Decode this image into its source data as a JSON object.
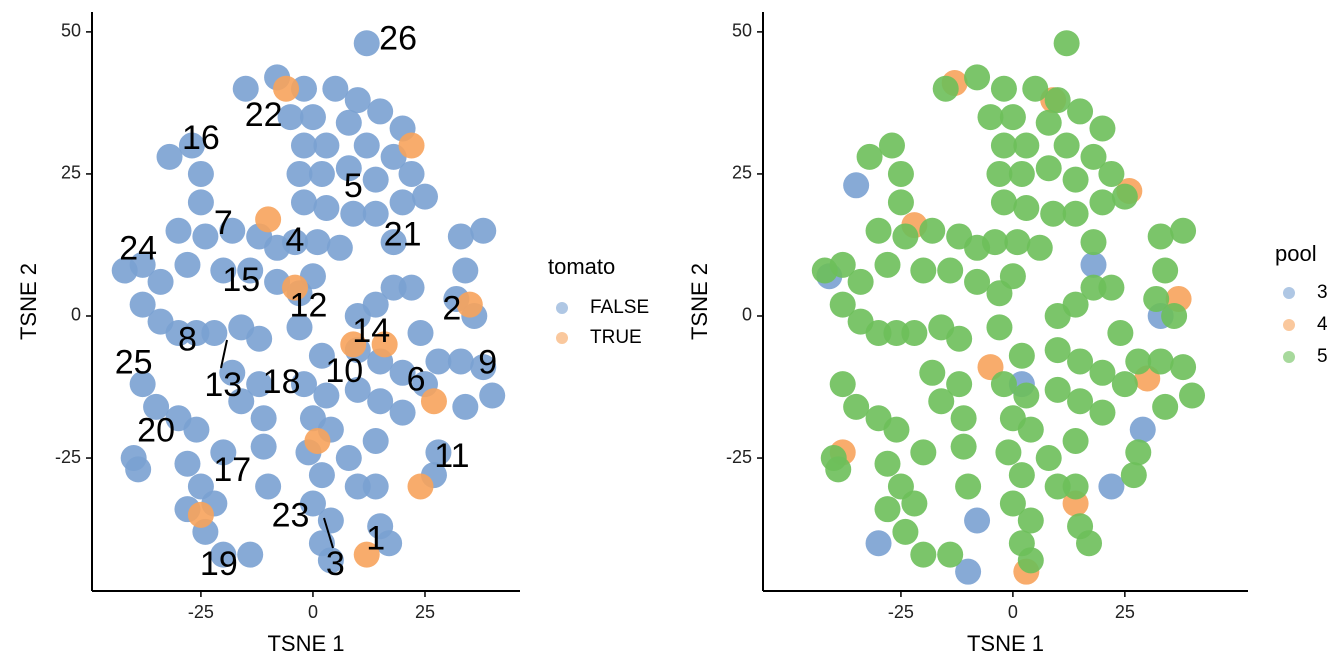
{
  "chart_data": [
    {
      "type": "scatter",
      "xlabel": "TSNE 1",
      "ylabel": "TSNE 2",
      "xlim": [
        -49.3,
        46.2
      ],
      "ylim": [
        -48.4,
        53.5
      ],
      "xticks": [
        -25,
        0,
        25
      ],
      "yticks": [
        -25,
        0,
        25,
        50
      ],
      "legend_title": "tomato",
      "series": [
        {
          "name": "FALSE",
          "color": "#7aa1d2",
          "x": [
            12,
            -15,
            -8,
            -2,
            5,
            10,
            15,
            20,
            -5,
            0,
            8,
            3,
            -2,
            12,
            18,
            22,
            25,
            -3,
            2,
            8,
            14,
            20,
            -2,
            3,
            9,
            14,
            -4,
            1,
            6,
            0,
            18,
            -32,
            -27,
            -25,
            -25,
            -30,
            -24,
            -18,
            -12,
            -8,
            -28,
            -20,
            -14,
            -8,
            -34,
            -42,
            -38,
            -38,
            -34,
            -30,
            -26,
            -22,
            -16,
            -12,
            -38,
            -35,
            -18,
            -16,
            -11,
            -11,
            -12,
            -30,
            -26,
            -28,
            -25,
            -22,
            -28,
            -24,
            -20,
            -14,
            -20,
            -40,
            -39,
            -10,
            -3,
            -3,
            2,
            -2,
            3,
            0,
            4,
            -1,
            2,
            0,
            4,
            2,
            4,
            10,
            14,
            18,
            22,
            10,
            15,
            20,
            25,
            10,
            15,
            20,
            28,
            24,
            33,
            38,
            40,
            34,
            33,
            34,
            32,
            36,
            38,
            27,
            28,
            14,
            14,
            15,
            17,
            8,
            10
          ],
          "y": [
            48,
            40,
            42,
            40,
            40,
            38,
            36,
            33,
            35,
            35,
            34,
            30,
            30,
            30,
            28,
            25,
            21,
            25,
            25,
            26,
            24,
            20,
            20,
            19,
            18,
            18,
            13,
            13,
            12,
            7,
            13,
            28,
            30,
            25,
            20,
            15,
            14,
            15,
            14,
            12,
            9,
            8,
            8,
            6,
            6,
            8,
            9,
            2,
            -1,
            -3,
            -3,
            -3,
            -2,
            -4,
            -12,
            -16,
            -10,
            -15,
            -18,
            -23,
            -12,
            -18,
            -20,
            -26,
            -30,
            -33,
            -34,
            -38,
            -42,
            -42,
            -24,
            -25,
            -27,
            -30,
            -2,
            4,
            -7,
            -12,
            -14,
            -18,
            -20,
            -24,
            -28,
            -33,
            -36,
            -40,
            -43,
            0,
            2,
            5,
            5,
            -6,
            -8,
            -10,
            -12,
            -13,
            -15,
            -17,
            -8,
            -3,
            -8,
            -9,
            -14,
            -16,
            14,
            8,
            3,
            0,
            15,
            -28,
            -24,
            -22,
            -30,
            -37,
            -40,
            -25,
            -30
          ]
        },
        {
          "name": "TRUE",
          "color": "#f7a35c",
          "x": [
            -6,
            22,
            -4,
            9,
            27,
            12,
            -25,
            35,
            -10,
            24,
            1,
            16
          ],
          "y": [
            40,
            30,
            5,
            -5,
            -15,
            -42,
            -35,
            2,
            17,
            -30,
            -22,
            -5
          ]
        }
      ],
      "annotations": [
        {
          "text": "26",
          "x": 19,
          "y": 48.5
        },
        {
          "text": "22",
          "x": -11,
          "y": 35
        },
        {
          "text": "16",
          "x": -25,
          "y": 31
        },
        {
          "text": "5",
          "x": 9,
          "y": 22.5
        },
        {
          "text": "7",
          "x": -20,
          "y": 16
        },
        {
          "text": "4",
          "x": -4,
          "y": 13
        },
        {
          "text": "21",
          "x": 20,
          "y": 14
        },
        {
          "text": "24",
          "x": -39,
          "y": 11.5
        },
        {
          "text": "15",
          "x": -16,
          "y": 6
        },
        {
          "text": "12",
          "x": -1,
          "y": 1.5
        },
        {
          "text": "2",
          "x": 31,
          "y": 1
        },
        {
          "text": "14",
          "x": 13,
          "y": -3
        },
        {
          "text": "8",
          "x": -28,
          "y": -4.5
        },
        {
          "text": "25",
          "x": -40,
          "y": -8.5
        },
        {
          "text": "9",
          "x": 39,
          "y": -8.5
        },
        {
          "text": "10",
          "x": 7,
          "y": -10
        },
        {
          "text": "6",
          "x": 23,
          "y": -11.5
        },
        {
          "text": "13",
          "x": -20,
          "y": -12.5
        },
        {
          "text": "18",
          "x": -7,
          "y": -12
        },
        {
          "text": "20",
          "x": -35,
          "y": -20.5
        },
        {
          "text": "11",
          "x": 31,
          "y": -25
        },
        {
          "text": "17",
          "x": -18,
          "y": -27.5
        },
        {
          "text": "23",
          "x": -5,
          "y": -35.5
        },
        {
          "text": "1",
          "x": 14,
          "y": -39.5
        },
        {
          "text": "19",
          "x": -21,
          "y": -44
        },
        {
          "text": "3",
          "x": 5,
          "y": -44
        }
      ]
    },
    {
      "type": "scatter",
      "xlabel": "TSNE 1",
      "ylabel": "TSNE 2",
      "xlim": [
        -55.8,
        52.5
      ],
      "ylim": [
        -48.4,
        53.5
      ],
      "xticks": [
        -25,
        0,
        25
      ],
      "yticks": [
        -25,
        0,
        25,
        50
      ],
      "legend_title": "pool",
      "series": [
        {
          "name": "3",
          "color": "#7aa1d2",
          "x": [
            -41,
            -10,
            33,
            -35,
            -8,
            22,
            2,
            -30,
            29,
            18
          ],
          "y": [
            7,
            -45,
            0,
            23,
            -36,
            -30,
            -12,
            -40,
            -20,
            9
          ]
        },
        {
          "name": "4",
          "color": "#f7a35c",
          "x": [
            -13,
            26,
            -5,
            3,
            14,
            -38,
            30,
            -22,
            9,
            37
          ],
          "y": [
            41,
            22,
            -9,
            -45,
            -33,
            -24,
            -11,
            16,
            38,
            3
          ]
        },
        {
          "name": "5",
          "color": "#6dbf5a",
          "x": [
            12,
            -15,
            -8,
            -2,
            5,
            10,
            15,
            20,
            -5,
            0,
            8,
            3,
            -2,
            12,
            18,
            22,
            25,
            -3,
            2,
            8,
            14,
            20,
            -2,
            3,
            9,
            14,
            -4,
            1,
            6,
            0,
            18,
            -32,
            -27,
            -25,
            -25,
            -30,
            -24,
            -18,
            -12,
            -8,
            -28,
            -20,
            -14,
            -8,
            -34,
            -42,
            -38,
            -38,
            -34,
            -30,
            -26,
            -22,
            -16,
            -12,
            -38,
            -35,
            -18,
            -16,
            -11,
            -11,
            -12,
            -30,
            -26,
            -28,
            -25,
            -22,
            -28,
            -24,
            -20,
            -14,
            -20,
            -40,
            -39,
            -10,
            -3,
            -3,
            2,
            -2,
            3,
            0,
            4,
            -1,
            2,
            0,
            4,
            2,
            4,
            10,
            14,
            18,
            22,
            10,
            15,
            20,
            25,
            10,
            15,
            20,
            28,
            24,
            33,
            38,
            40,
            34,
            33,
            34,
            32,
            36,
            38,
            27,
            28,
            14,
            14,
            15,
            17,
            8,
            10
          ],
          "y": [
            48,
            40,
            42,
            40,
            40,
            38,
            36,
            33,
            35,
            35,
            34,
            30,
            30,
            30,
            28,
            25,
            21,
            25,
            25,
            26,
            24,
            20,
            20,
            19,
            18,
            18,
            13,
            13,
            12,
            7,
            13,
            28,
            30,
            25,
            20,
            15,
            14,
            15,
            14,
            12,
            9,
            8,
            8,
            6,
            6,
            8,
            9,
            2,
            -1,
            -3,
            -3,
            -3,
            -2,
            -4,
            -12,
            -16,
            -10,
            -15,
            -18,
            -23,
            -12,
            -18,
            -20,
            -26,
            -30,
            -33,
            -34,
            -38,
            -42,
            -42,
            -24,
            -25,
            -27,
            -30,
            -2,
            4,
            -7,
            -12,
            -14,
            -18,
            -20,
            -24,
            -28,
            -33,
            -36,
            -40,
            -43,
            0,
            2,
            5,
            5,
            -6,
            -8,
            -10,
            -12,
            -13,
            -15,
            -17,
            -8,
            -3,
            -8,
            -9,
            -14,
            -16,
            14,
            8,
            3,
            0,
            15,
            -28,
            -24,
            -22,
            -30,
            -37,
            -40,
            -25,
            -30
          ]
        }
      ]
    }
  ]
}
